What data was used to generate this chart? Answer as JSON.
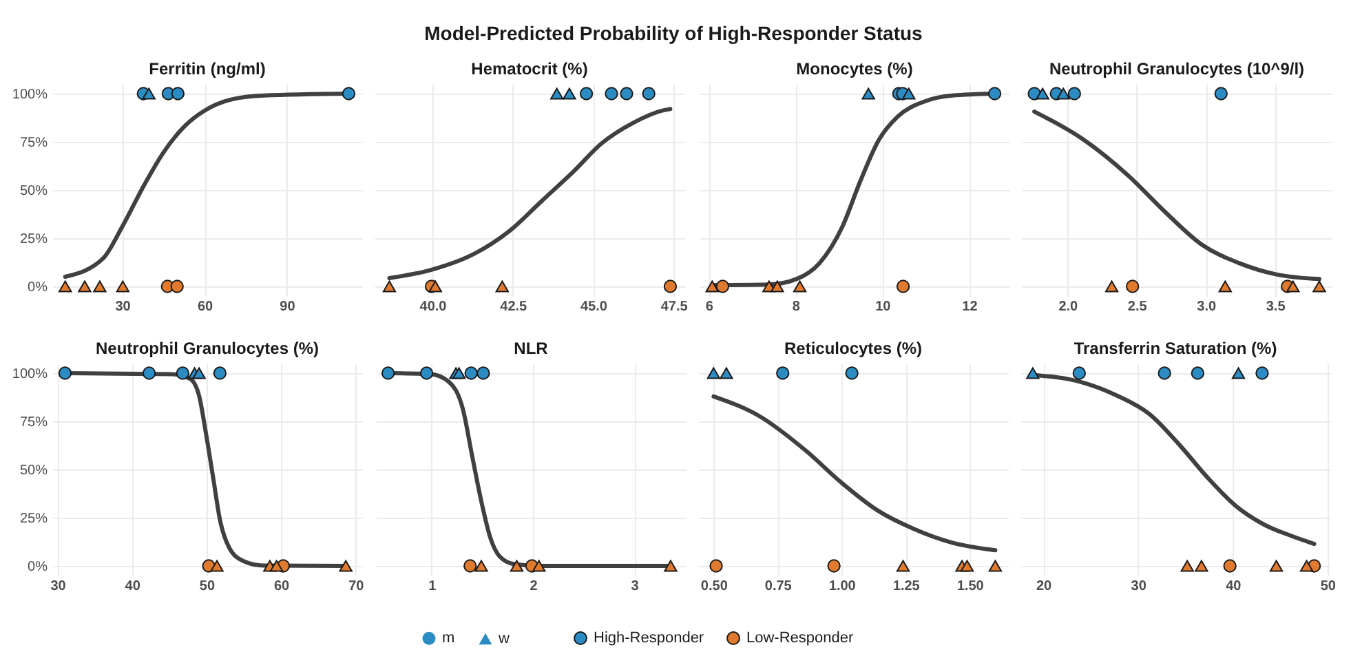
{
  "chart_data": [
    {
      "type": "scatter",
      "title": "Ferritin (ng/ml)",
      "annotations": [
        "Model-Predicted Probability of High-Responder Status",
        "m",
        "w"
      ],
      "xlim": [
        4.5,
        117.5
      ],
      "xticks": [
        30,
        60,
        90
      ],
      "ylim": [
        -5,
        105
      ],
      "yticks": [
        {
          "value": 0,
          "label": "0%"
        },
        {
          "value": 25,
          "label": "25%"
        },
        {
          "value": 50,
          "label": "50%"
        },
        {
          "value": 75,
          "label": "75%"
        },
        {
          "value": 100,
          "label": "100%"
        }
      ],
      "grid": true,
      "legend": "bottom",
      "series": [
        {
          "name": "High-Responder",
          "marker": "circle",
          "color": "#2b8cc4",
          "x": [
            37.7,
            46.8,
            50.3,
            112.6
          ],
          "values": [
            100,
            100,
            100,
            100
          ]
        },
        {
          "marker": "triangle",
          "color": "#2b8cc4",
          "x": [
            39.7
          ],
          "values": [
            100
          ]
        },
        {
          "name": "Low-Responder",
          "marker": "circle",
          "color": "#e07a2e",
          "x": [
            46.5,
            50.0
          ],
          "values": [
            0,
            0
          ]
        },
        {
          "marker": "triangle",
          "color": "#e07a2e",
          "x": [
            9.2,
            16.3,
            21.8,
            30.2
          ],
          "values": [
            0,
            0,
            0,
            0
          ]
        },
        {
          "type": "line",
          "color": "#404040",
          "x": [
            9.2,
            23,
            30,
            38,
            44.8,
            53.1,
            59.8,
            69.9,
            81.6,
            112.6
          ],
          "values": [
            5,
            14.5,
            31,
            52.6,
            69,
            83.6,
            91,
            97,
            99,
            100
          ]
        }
      ]
    },
    {
      "type": "scatter",
      "title": "Hematocrit (%)",
      "xlim": [
        38.2,
        47.84
      ],
      "xticks": [
        {
          "value": 40,
          "label": "40.0"
        },
        {
          "value": 42.5,
          "label": "42.5"
        },
        {
          "value": 45,
          "label": "45.0"
        },
        {
          "value": 47.5,
          "label": "47.5"
        }
      ],
      "ylim": [
        -5,
        105
      ],
      "yticks": [
        0,
        25,
        50,
        75,
        100
      ],
      "grid": true,
      "legend": "bottom",
      "tick_labels": "x",
      "series": [
        {
          "name": "High-Responder",
          "marker": "circle",
          "color": "#2b8cc4",
          "x": [
            44.79,
            45.57,
            46.04,
            46.73
          ],
          "values": [
            100,
            100,
            100,
            100
          ]
        },
        {
          "marker": "triangle",
          "color": "#2b8cc4",
          "x": [
            43.87,
            44.26
          ],
          "values": [
            100,
            100
          ]
        },
        {
          "name": "Low-Responder",
          "marker": "circle",
          "color": "#e07a2e",
          "x": [
            39.97,
            47.4
          ],
          "values": [
            0,
            0
          ]
        },
        {
          "marker": "triangle",
          "color": "#e07a2e",
          "x": [
            38.66,
            40.09,
            42.17
          ],
          "values": [
            0,
            0,
            0
          ]
        },
        {
          "type": "line",
          "color": "#404040",
          "x": [
            38.66,
            39.97,
            41.3,
            42.4,
            43.4,
            44.4,
            45.25,
            46.24,
            47.2,
            47.4
          ],
          "values": [
            4.3,
            8.6,
            16.9,
            28.8,
            44.3,
            59.8,
            74,
            84.8,
            91.4,
            92
          ]
        }
      ]
    },
    {
      "type": "scatter",
      "title": "Monocytes (%)",
      "xlim": [
        5.79,
        12.93
      ],
      "xticks": [
        6,
        8,
        10,
        12
      ],
      "ylim": [
        -5,
        105
      ],
      "yticks": [
        0,
        25,
        50,
        75,
        100
      ],
      "grid": true,
      "legend": "bottom",
      "tick_labels": "x",
      "series": [
        {
          "name": "High-Responder",
          "marker": "circle",
          "color": "#2b8cc4",
          "x": [
            10.38,
            10.47,
            12.59
          ],
          "values": [
            100,
            100,
            100
          ]
        },
        {
          "marker": "triangle",
          "color": "#2b8cc4",
          "x": [
            9.68,
            10.61
          ],
          "values": [
            100,
            100
          ]
        },
        {
          "name": "Low-Responder",
          "marker": "circle",
          "color": "#e07a2e",
          "x": [
            6.32,
            10.48
          ],
          "values": [
            0,
            0
          ]
        },
        {
          "marker": "triangle",
          "color": "#e07a2e",
          "x": [
            6.08,
            7.39,
            7.58,
            8.1
          ],
          "values": [
            0,
            0,
            0,
            0
          ]
        },
        {
          "type": "line",
          "color": "#404040",
          "x": [
            6.08,
            7.39,
            8.02,
            8.55,
            9.08,
            9.5,
            9.92,
            10.35,
            10.98,
            11.61,
            12.59
          ],
          "values": [
            0.7,
            1,
            3.8,
            12,
            31,
            55,
            76,
            88,
            96,
            99,
            100
          ]
        }
      ]
    },
    {
      "type": "scatter",
      "title": "Neutrophil Granulocytes (10^9/l)",
      "xlim": [
        1.67,
        3.91
      ],
      "xticks": [
        {
          "value": 2,
          "label": "2.0"
        },
        {
          "value": 2.5,
          "label": "2.5"
        },
        {
          "value": 3,
          "label": "3.0"
        },
        {
          "value": 3.5,
          "label": "3.5"
        }
      ],
      "ylim": [
        -5,
        105
      ],
      "yticks": [
        0,
        25,
        50,
        75,
        100
      ],
      "grid": true,
      "legend": "bottom",
      "tick_labels": "x",
      "series": [
        {
          "name": "High-Responder",
          "marker": "circle",
          "color": "#2b8cc4",
          "x": [
            1.76,
            1.92,
            2.05,
            3.11
          ],
          "values": [
            100,
            100,
            100,
            100
          ]
        },
        {
          "marker": "triangle",
          "color": "#2b8cc4",
          "x": [
            1.82,
            1.97
          ],
          "values": [
            100,
            100
          ]
        },
        {
          "name": "Low-Responder",
          "marker": "circle",
          "color": "#e07a2e",
          "x": [
            2.47,
            3.59
          ],
          "values": [
            0,
            0
          ]
        },
        {
          "marker": "triangle",
          "color": "#e07a2e",
          "x": [
            2.32,
            3.14,
            3.63,
            3.82
          ],
          "values": [
            0,
            0,
            0,
            0
          ]
        },
        {
          "type": "line",
          "color": "#404040",
          "x": [
            1.76,
            2.11,
            2.44,
            2.71,
            2.97,
            3.24,
            3.51,
            3.82
          ],
          "values": [
            90.7,
            76.4,
            57.4,
            38.3,
            21.7,
            12.1,
            6.2,
            3.8
          ]
        }
      ]
    },
    {
      "type": "scatter",
      "title": "Neutrophil Granulocytes (%)",
      "xlim": [
        29.3,
        70.9
      ],
      "xticks": [
        30,
        40,
        50,
        60,
        70
      ],
      "ylim": [
        -5,
        105
      ],
      "yticks": [
        {
          "value": 0,
          "label": "0%"
        },
        {
          "value": 25,
          "label": "25%"
        },
        {
          "value": 50,
          "label": "50%"
        },
        {
          "value": 75,
          "label": "75%"
        },
        {
          "value": 100,
          "label": "100%"
        }
      ],
      "grid": true,
      "legend": "bottom",
      "series": [
        {
          "name": "High-Responder",
          "marker": "circle",
          "color": "#2b8cc4",
          "x": [
            31.0,
            42.3,
            46.8,
            51.8
          ],
          "values": [
            100,
            100,
            100,
            100
          ]
        },
        {
          "marker": "triangle",
          "color": "#2b8cc4",
          "x": [
            48.4,
            49.0
          ],
          "values": [
            100,
            100
          ]
        },
        {
          "name": "Low-Responder",
          "marker": "circle",
          "color": "#e07a2e",
          "x": [
            50.3,
            60.3
          ],
          "values": [
            0,
            0
          ]
        },
        {
          "marker": "triangle",
          "color": "#e07a2e",
          "x": [
            51.4,
            58.5,
            59.4,
            68.7
          ],
          "values": [
            0,
            0,
            0,
            0
          ]
        },
        {
          "type": "line",
          "color": "#404040",
          "x": [
            31.0,
            45.3,
            47.8,
            49.0,
            49.9,
            50.9,
            51.8,
            53.0,
            54.9,
            57.6,
            68.7
          ],
          "values": [
            100,
            99.5,
            97,
            88.3,
            69.3,
            45.5,
            24,
            9.8,
            2.6,
            0.2,
            0
          ]
        }
      ]
    },
    {
      "type": "scatter",
      "title": "NLR",
      "xlim": [
        0.45,
        3.51
      ],
      "xticks": [
        1,
        2,
        3
      ],
      "ylim": [
        -5,
        105
      ],
      "yticks": [
        0,
        25,
        50,
        75,
        100
      ],
      "grid": true,
      "legend": "bottom",
      "tick_labels": "x",
      "series": [
        {
          "name": "High-Responder",
          "marker": "circle",
          "color": "#2b8cc4",
          "x": [
            0.57,
            0.95,
            1.39,
            1.51
          ],
          "values": [
            100,
            100,
            100,
            100
          ]
        },
        {
          "marker": "triangle",
          "color": "#2b8cc4",
          "x": [
            1.24,
            1.27
          ],
          "values": [
            100,
            100
          ]
        },
        {
          "name": "Low-Responder",
          "marker": "circle",
          "color": "#e07a2e",
          "x": [
            1.38,
            1.99
          ],
          "values": [
            0,
            0
          ]
        },
        {
          "marker": "triangle",
          "color": "#e07a2e",
          "x": [
            1.49,
            1.84,
            2.06,
            3.36
          ],
          "values": [
            0,
            0,
            0,
            0
          ]
        },
        {
          "type": "line",
          "color": "#404040",
          "x": [
            0.57,
            0.99,
            1.17,
            1.31,
            1.4,
            1.49,
            1.58,
            1.67,
            1.81,
            2.08,
            3.36
          ],
          "values": [
            100,
            99.5,
            95.5,
            81,
            57,
            33.6,
            14.5,
            5,
            1,
            0,
            0
          ]
        }
      ]
    },
    {
      "type": "scatter",
      "title": "Reticulocytes (%)",
      "xlim": [
        0.44,
        1.65
      ],
      "xticks": [
        {
          "value": 0.5,
          "label": "0.50"
        },
        {
          "value": 0.75,
          "label": "0.75"
        },
        {
          "value": 1,
          "label": "1.00"
        },
        {
          "value": 1.25,
          "label": "1.25"
        },
        {
          "value": 1.5,
          "label": "1.50"
        }
      ],
      "ylim": [
        -5,
        105
      ],
      "yticks": [
        0,
        25,
        50,
        75,
        100
      ],
      "grid": true,
      "legend": "bottom",
      "tick_labels": "x",
      "series": [
        {
          "name": "High-Responder",
          "marker": "circle",
          "color": "#2b8cc4",
          "x": [
            0.77,
            1.04
          ],
          "values": [
            100,
            100
          ]
        },
        {
          "marker": "triangle",
          "color": "#2b8cc4",
          "x": [
            0.5,
            0.55
          ],
          "values": [
            100,
            100
          ]
        },
        {
          "name": "Low-Responder",
          "marker": "circle",
          "color": "#e07a2e",
          "x": [
            0.51,
            0.97
          ],
          "values": [
            0,
            0
          ]
        },
        {
          "marker": "triangle",
          "color": "#e07a2e",
          "x": [
            1.24,
            1.47,
            1.49,
            1.6
          ],
          "values": [
            0,
            0,
            0,
            0
          ]
        },
        {
          "type": "line",
          "color": "#404040",
          "x": [
            0.5,
            0.68,
            0.86,
            1.0,
            1.14,
            1.28,
            1.43,
            1.6
          ],
          "values": [
            87.9,
            77.6,
            59.8,
            43.1,
            28.8,
            19.3,
            12.1,
            8.1
          ]
        }
      ]
    },
    {
      "type": "scatter",
      "title": "Transferrin Saturation (%)",
      "xlim": [
        17.6,
        50.3
      ],
      "xticks": [
        20,
        30,
        40,
        50
      ],
      "ylim": [
        -5,
        105
      ],
      "yticks": [
        0,
        25,
        50,
        75,
        100
      ],
      "grid": true,
      "legend": "bottom",
      "tick_labels": "x",
      "series": [
        {
          "name": "High-Responder",
          "marker": "circle",
          "color": "#2b8cc4",
          "x": [
            23.8,
            32.8,
            36.3,
            43.1
          ],
          "values": [
            100,
            100,
            100,
            100
          ]
        },
        {
          "marker": "triangle",
          "color": "#2b8cc4",
          "x": [
            18.9,
            40.6
          ],
          "values": [
            100,
            100
          ]
        },
        {
          "name": "Low-Responder",
          "marker": "circle",
          "color": "#e07a2e",
          "x": [
            39.7,
            48.6
          ],
          "values": [
            0,
            0
          ]
        },
        {
          "marker": "triangle",
          "color": "#e07a2e",
          "x": [
            35.2,
            36.7,
            44.6,
            47.8
          ],
          "values": [
            0,
            0,
            0,
            0
          ]
        },
        {
          "type": "line",
          "color": "#404040",
          "x": [
            18.9,
            23.9,
            27.8,
            31.2,
            34.5,
            37.4,
            40.3,
            43.2,
            46.1,
            48.6
          ],
          "values": [
            99,
            95.5,
            88.3,
            78.8,
            62.1,
            45.5,
            31.2,
            21.7,
            15.7,
            11.4
          ]
        }
      ]
    }
  ]
}
